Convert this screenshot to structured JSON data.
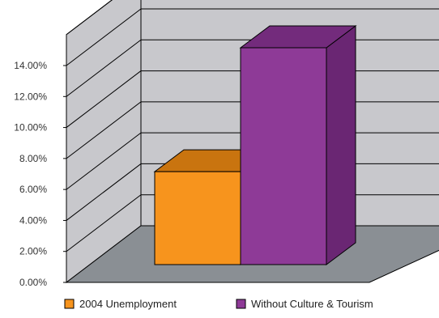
{
  "chart_data": {
    "type": "bar",
    "title": "",
    "xlabel": "",
    "ylabel": "",
    "ylim": [
      0,
      14
    ],
    "y_unit": "%",
    "yticks": [
      "0.00%",
      "2.00%",
      "4.00%",
      "6.00%",
      "8.00%",
      "10.00%",
      "12.00%",
      "14.00%"
    ],
    "grid": true,
    "three_d": true,
    "legend_position": "bottom",
    "series": [
      {
        "name": "2004 Unemployment",
        "value": 6.0,
        "front_color": "#F7941D",
        "top_color": "#C9740F",
        "side_color": "#B36308"
      },
      {
        "name": "Without Culture & Tourism",
        "value": 14.0,
        "front_color": "#8E3A97",
        "top_color": "#732B7C",
        "side_color": "#6A2673"
      }
    ],
    "colors": {
      "back_wall": "#C8C8CC",
      "left_wall": "#C8C8CC",
      "floor": "#8A8F94",
      "grid": "#000000"
    }
  }
}
